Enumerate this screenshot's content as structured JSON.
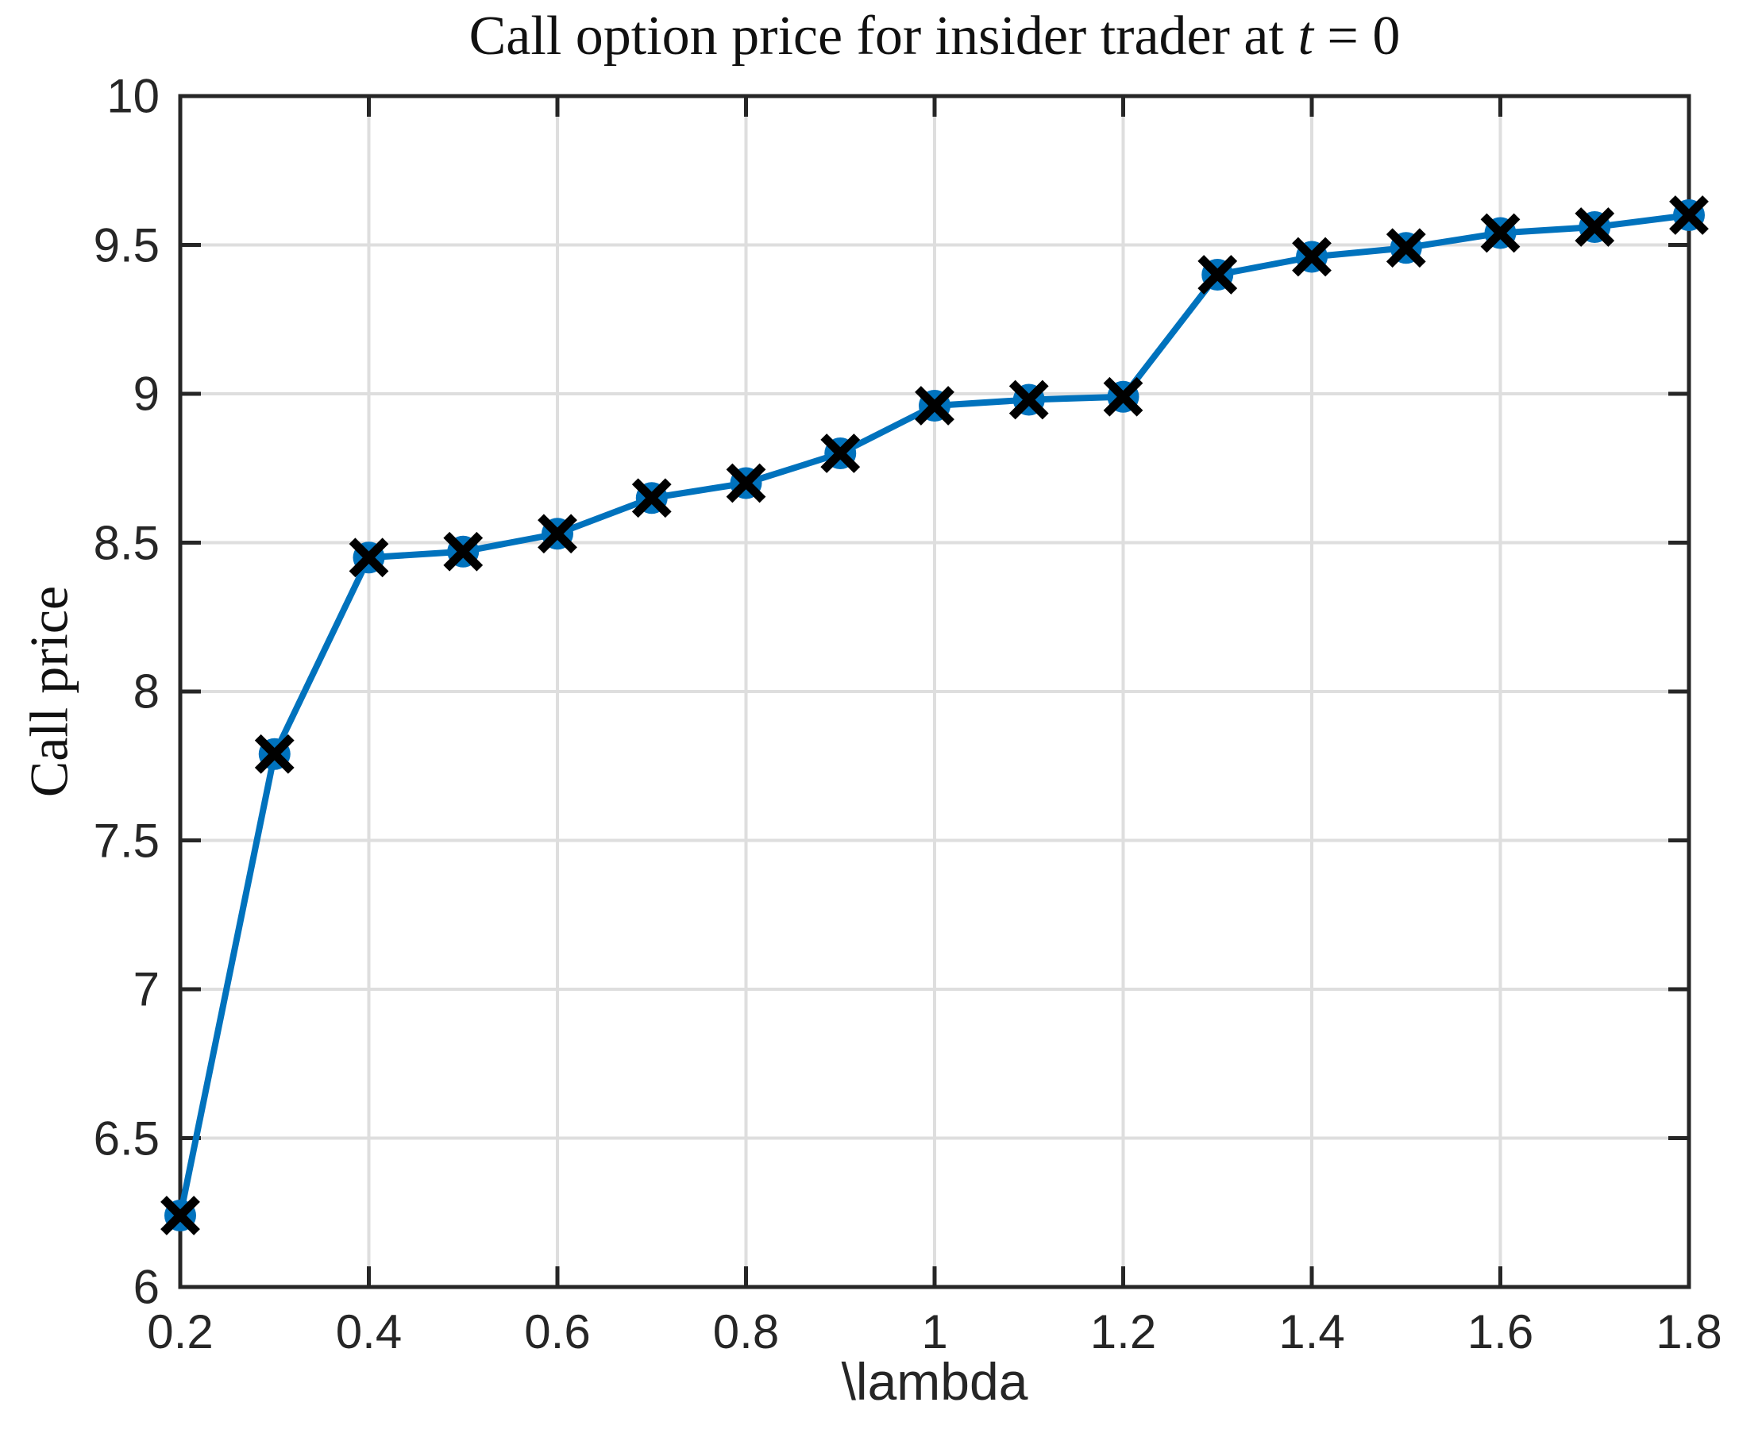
{
  "figure": {
    "title_parts": {
      "prefix": "Call option price for insider trader at ",
      "var": "t",
      "suffix": " = 0"
    }
  },
  "chart_data": {
    "type": "line",
    "title": "Call option price for insider trader at t = 0",
    "xlabel": "\\lambda",
    "ylabel": "Call price",
    "x": [
      0.2,
      0.3,
      0.4,
      0.5,
      0.6,
      0.7,
      0.8,
      0.9,
      1.0,
      1.1,
      1.2,
      1.3,
      1.4,
      1.5,
      1.6,
      1.7,
      1.8
    ],
    "y": [
      6.24,
      7.79,
      8.45,
      8.47,
      8.53,
      8.65,
      8.7,
      8.8,
      8.96,
      8.98,
      8.99,
      9.4,
      9.46,
      9.49,
      9.54,
      9.56,
      9.6
    ],
    "series_name": "Call price vs lambda",
    "xlim": [
      0.2,
      1.8
    ],
    "ylim": [
      6,
      10
    ],
    "xticks": {
      "values": [
        0.2,
        0.4,
        0.6,
        0.8,
        1.0,
        1.2,
        1.4,
        1.6,
        1.8
      ],
      "labels": [
        "0.2",
        "0.4",
        "0.6",
        "0.8",
        "1",
        "1.2",
        "1.4",
        "1.6",
        "1.8"
      ]
    },
    "yticks": {
      "values": [
        6,
        6.5,
        7,
        7.5,
        8,
        8.5,
        9,
        9.5,
        10
      ],
      "labels": [
        "6",
        "6.5",
        "7",
        "7.5",
        "8",
        "8.5",
        "9",
        "9.5",
        "10"
      ]
    },
    "grid": true,
    "legend": "none",
    "marker": "circle-with-x",
    "colors": {
      "line": "#0072BD",
      "marker_face": "#0072BD",
      "marker_x": "#000000",
      "grid": "#DEDEDE",
      "axis": "#262626",
      "tick_label": "#262626",
      "background": "#FFFFFF"
    }
  }
}
